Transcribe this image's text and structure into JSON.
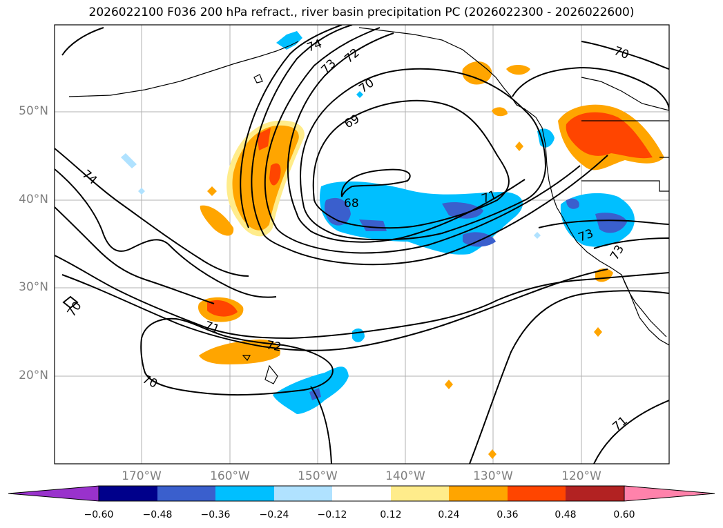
{
  "title": "2026022100 F036 200 hPa refract., river basin precipitation PC (2026022300 - 2026022600)",
  "lat_labels": [
    {
      "value": 50,
      "text": "50°N"
    },
    {
      "value": 40,
      "text": "40°N"
    },
    {
      "value": 30,
      "text": "30°N"
    },
    {
      "value": 20,
      "text": "20°N"
    }
  ],
  "lon_labels": [
    {
      "value": -170,
      "text": "170°W"
    },
    {
      "value": -160,
      "text": "160°W"
    },
    {
      "value": -150,
      "text": "150°W"
    },
    {
      "value": -140,
      "text": "140°W"
    },
    {
      "value": -130,
      "text": "130°W"
    },
    {
      "value": -120,
      "text": "120°W"
    }
  ],
  "contour_labels": [
    "74",
    "73",
    "72",
    "70",
    "69",
    "68",
    "71",
    "74",
    "70",
    "71",
    "72",
    "70",
    "73",
    "73",
    "70",
    "71"
  ],
  "colorbar": {
    "colors": [
      "#9932cc",
      "#00008b",
      "#3a5fcd",
      "#00bfff",
      "#b0e2ff",
      "#ffffff",
      "#ffec8b",
      "#ffa500",
      "#ff4500",
      "#b22222",
      "#ff82ab"
    ],
    "ticks": [
      "−0.60",
      "−0.48",
      "−0.36",
      "−0.24",
      "−0.12",
      "0.12",
      "0.24",
      "0.36",
      "0.48",
      "0.60"
    ]
  }
}
